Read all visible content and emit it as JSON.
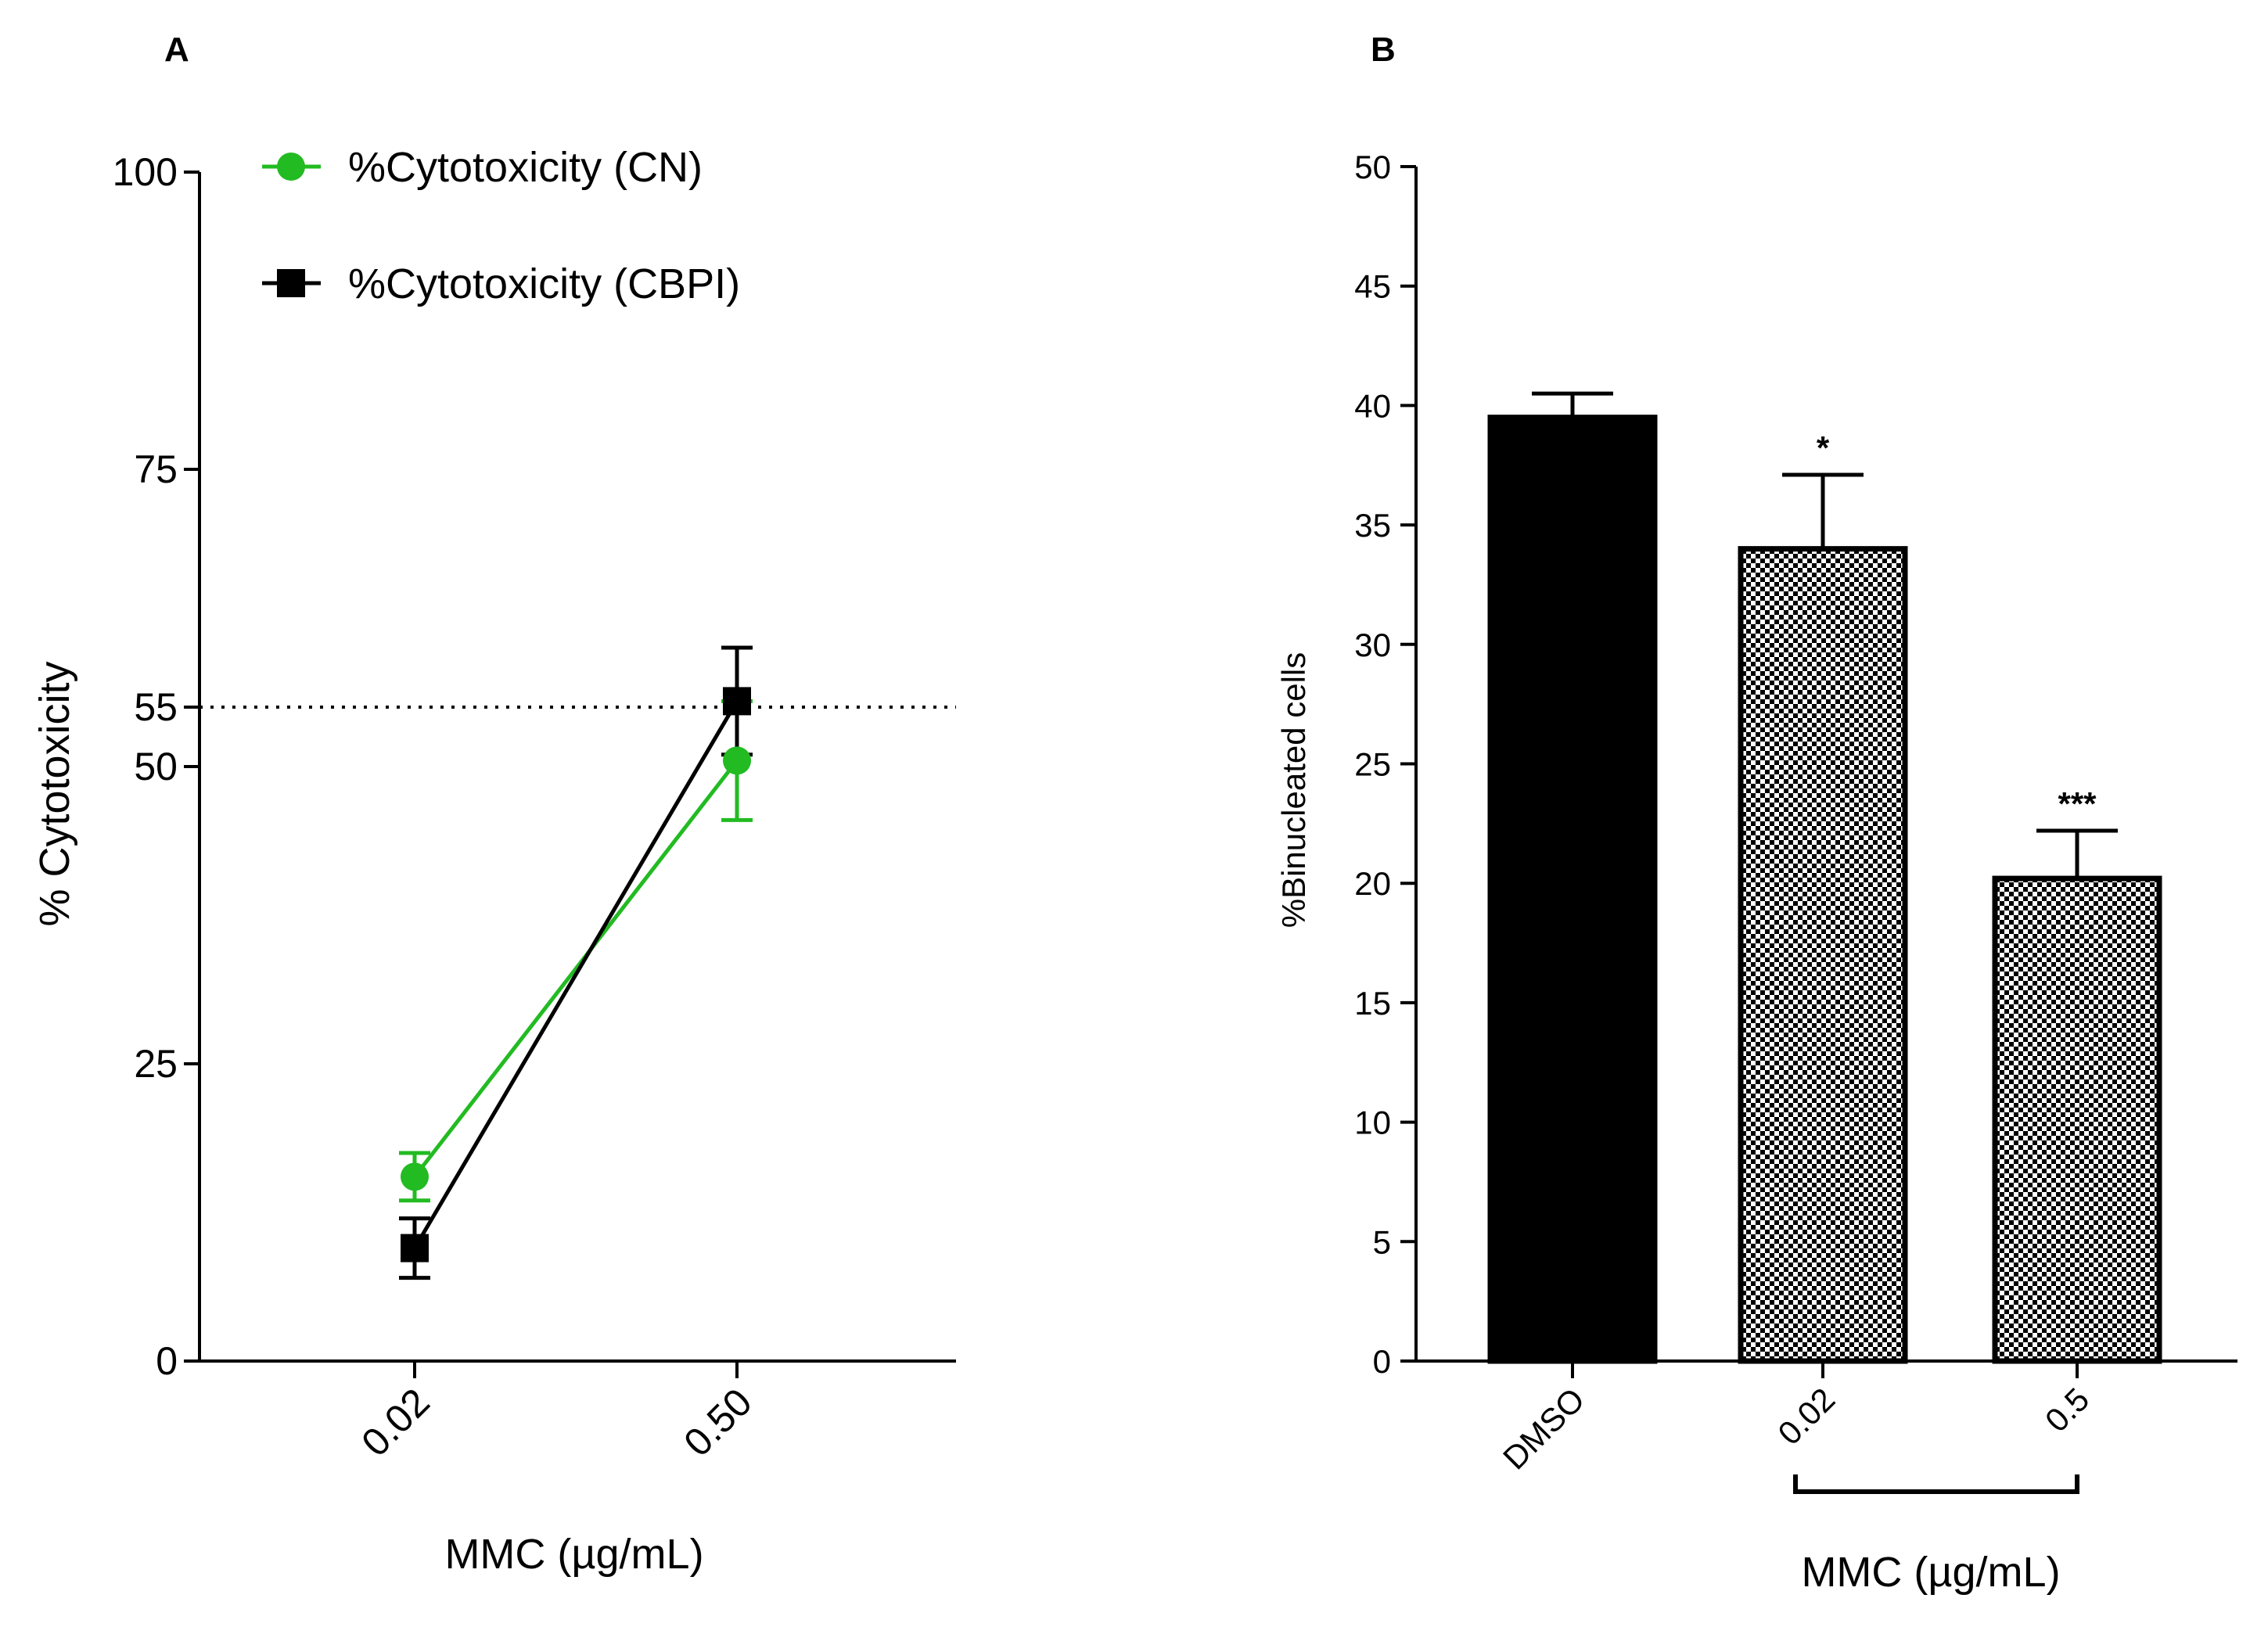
{
  "chart_data": [
    {
      "panel": "A",
      "type": "line",
      "xlabel": "MMC (µg/mL)",
      "ylabel": "% Cytotoxicity",
      "categories": [
        "0.02",
        "0.50"
      ],
      "ylim": [
        0,
        100
      ],
      "yticks": [
        "0",
        "25",
        "50",
        "55",
        "75",
        "100"
      ],
      "reference_line": {
        "y": 55,
        "style": "dotted"
      },
      "legend_position": "top-left",
      "series": [
        {
          "name": "%Cytotoxicity (CN)",
          "color": "#22bb22",
          "marker": "circle",
          "values": [
            15.5,
            50.5
          ],
          "errors": [
            2.0,
            5.0
          ]
        },
        {
          "name": "%Cytotoxicity (CBPI)",
          "color": "#000000",
          "marker": "square",
          "values": [
            9.5,
            55.5
          ],
          "errors": [
            2.5,
            4.5
          ]
        }
      ]
    },
    {
      "panel": "B",
      "type": "bar",
      "xlabel": "MMC (µg/mL)",
      "ylabel": "%Binucleated cells",
      "categories": [
        "DMSO",
        "0.02",
        "0.5"
      ],
      "ylim": [
        0,
        50
      ],
      "yticks": [
        "0",
        "5",
        "10",
        "15",
        "20",
        "25",
        "30",
        "35",
        "40",
        "45",
        "50"
      ],
      "bracket_categories": [
        "0.02",
        "0.5"
      ],
      "bars": [
        {
          "label": "DMSO",
          "value": 39.5,
          "error": 1.0,
          "fill": "solid",
          "significance": ""
        },
        {
          "label": "0.02",
          "value": 34.0,
          "error": 3.1,
          "fill": "checker",
          "significance": "*"
        },
        {
          "label": "0.5",
          "value": 20.2,
          "error": 2.0,
          "fill": "checker",
          "significance": "***"
        }
      ]
    }
  ]
}
